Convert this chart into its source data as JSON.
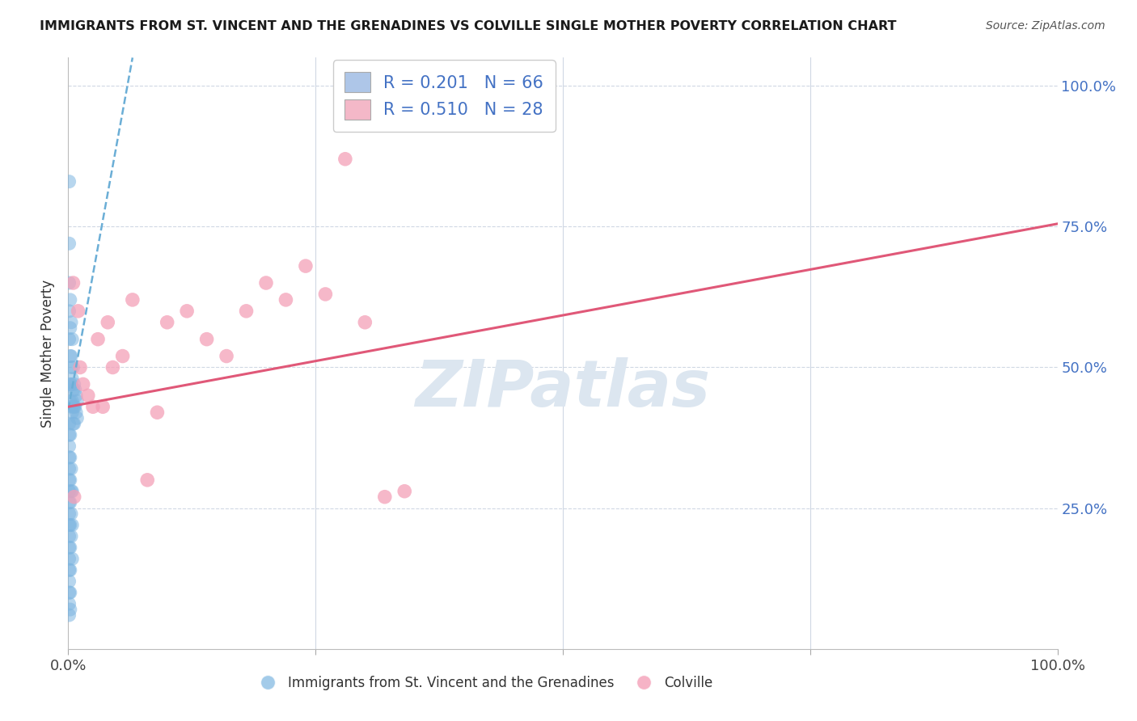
{
  "title": "IMMIGRANTS FROM ST. VINCENT AND THE GRENADINES VS COLVILLE SINGLE MOTHER POVERTY CORRELATION CHART",
  "source": "Source: ZipAtlas.com",
  "ylabel": "Single Mother Poverty",
  "legend1_label": "R = 0.201   N = 66",
  "legend2_label": "R = 0.510   N = 28",
  "legend1_color": "#aec6e8",
  "legend2_color": "#f4b8c8",
  "dot_blue_color": "#7db5e0",
  "dot_pink_color": "#f4a0b8",
  "blue_line_color": "#6baed6",
  "pink_line_color": "#e05878",
  "xlim": [
    0.0,
    1.0
  ],
  "ylim": [
    0.0,
    1.05
  ],
  "background_color": "#ffffff",
  "watermark_text": "ZIPatlas",
  "watermark_color": "#dce6f0",
  "blue_line_x0": 0.0,
  "blue_line_y0": 0.425,
  "blue_line_x1": 0.065,
  "blue_line_y1": 1.05,
  "pink_line_x0": 0.0,
  "pink_line_y0": 0.43,
  "pink_line_x1": 1.0,
  "pink_line_y1": 0.755,
  "blue_dots": [
    [
      0.001,
      0.83
    ],
    [
      0.001,
      0.72
    ],
    [
      0.001,
      0.65
    ],
    [
      0.001,
      0.6
    ],
    [
      0.001,
      0.55
    ],
    [
      0.002,
      0.62
    ],
    [
      0.002,
      0.57
    ],
    [
      0.002,
      0.52
    ],
    [
      0.002,
      0.47
    ],
    [
      0.002,
      0.44
    ],
    [
      0.003,
      0.58
    ],
    [
      0.003,
      0.52
    ],
    [
      0.003,
      0.47
    ],
    [
      0.003,
      0.43
    ],
    [
      0.003,
      0.5
    ],
    [
      0.004,
      0.55
    ],
    [
      0.004,
      0.48
    ],
    [
      0.004,
      0.44
    ],
    [
      0.004,
      0.42
    ],
    [
      0.005,
      0.5
    ],
    [
      0.005,
      0.46
    ],
    [
      0.005,
      0.43
    ],
    [
      0.005,
      0.4
    ],
    [
      0.006,
      0.47
    ],
    [
      0.006,
      0.43
    ],
    [
      0.006,
      0.4
    ],
    [
      0.007,
      0.46
    ],
    [
      0.007,
      0.43
    ],
    [
      0.008,
      0.45
    ],
    [
      0.008,
      0.42
    ],
    [
      0.009,
      0.44
    ],
    [
      0.009,
      0.41
    ],
    [
      0.001,
      0.4
    ],
    [
      0.001,
      0.38
    ],
    [
      0.001,
      0.36
    ],
    [
      0.001,
      0.34
    ],
    [
      0.001,
      0.32
    ],
    [
      0.001,
      0.3
    ],
    [
      0.001,
      0.28
    ],
    [
      0.001,
      0.26
    ],
    [
      0.001,
      0.24
    ],
    [
      0.001,
      0.22
    ],
    [
      0.001,
      0.2
    ],
    [
      0.001,
      0.18
    ],
    [
      0.001,
      0.16
    ],
    [
      0.001,
      0.14
    ],
    [
      0.001,
      0.12
    ],
    [
      0.001,
      0.1
    ],
    [
      0.001,
      0.08
    ],
    [
      0.001,
      0.06
    ],
    [
      0.002,
      0.38
    ],
    [
      0.002,
      0.34
    ],
    [
      0.002,
      0.3
    ],
    [
      0.002,
      0.26
    ],
    [
      0.002,
      0.22
    ],
    [
      0.002,
      0.18
    ],
    [
      0.002,
      0.14
    ],
    [
      0.002,
      0.1
    ],
    [
      0.002,
      0.07
    ],
    [
      0.003,
      0.32
    ],
    [
      0.003,
      0.28
    ],
    [
      0.003,
      0.24
    ],
    [
      0.003,
      0.2
    ],
    [
      0.004,
      0.28
    ],
    [
      0.004,
      0.22
    ],
    [
      0.004,
      0.16
    ]
  ],
  "pink_dots": [
    [
      0.005,
      0.65
    ],
    [
      0.01,
      0.6
    ],
    [
      0.012,
      0.5
    ],
    [
      0.015,
      0.47
    ],
    [
      0.02,
      0.45
    ],
    [
      0.025,
      0.43
    ],
    [
      0.03,
      0.55
    ],
    [
      0.035,
      0.43
    ],
    [
      0.04,
      0.58
    ],
    [
      0.045,
      0.5
    ],
    [
      0.055,
      0.52
    ],
    [
      0.065,
      0.62
    ],
    [
      0.08,
      0.3
    ],
    [
      0.09,
      0.42
    ],
    [
      0.1,
      0.58
    ],
    [
      0.12,
      0.6
    ],
    [
      0.14,
      0.55
    ],
    [
      0.16,
      0.52
    ],
    [
      0.18,
      0.6
    ],
    [
      0.2,
      0.65
    ],
    [
      0.22,
      0.62
    ],
    [
      0.24,
      0.68
    ],
    [
      0.26,
      0.63
    ],
    [
      0.28,
      0.87
    ],
    [
      0.3,
      0.58
    ],
    [
      0.32,
      0.27
    ],
    [
      0.34,
      0.28
    ],
    [
      0.006,
      0.27
    ]
  ]
}
